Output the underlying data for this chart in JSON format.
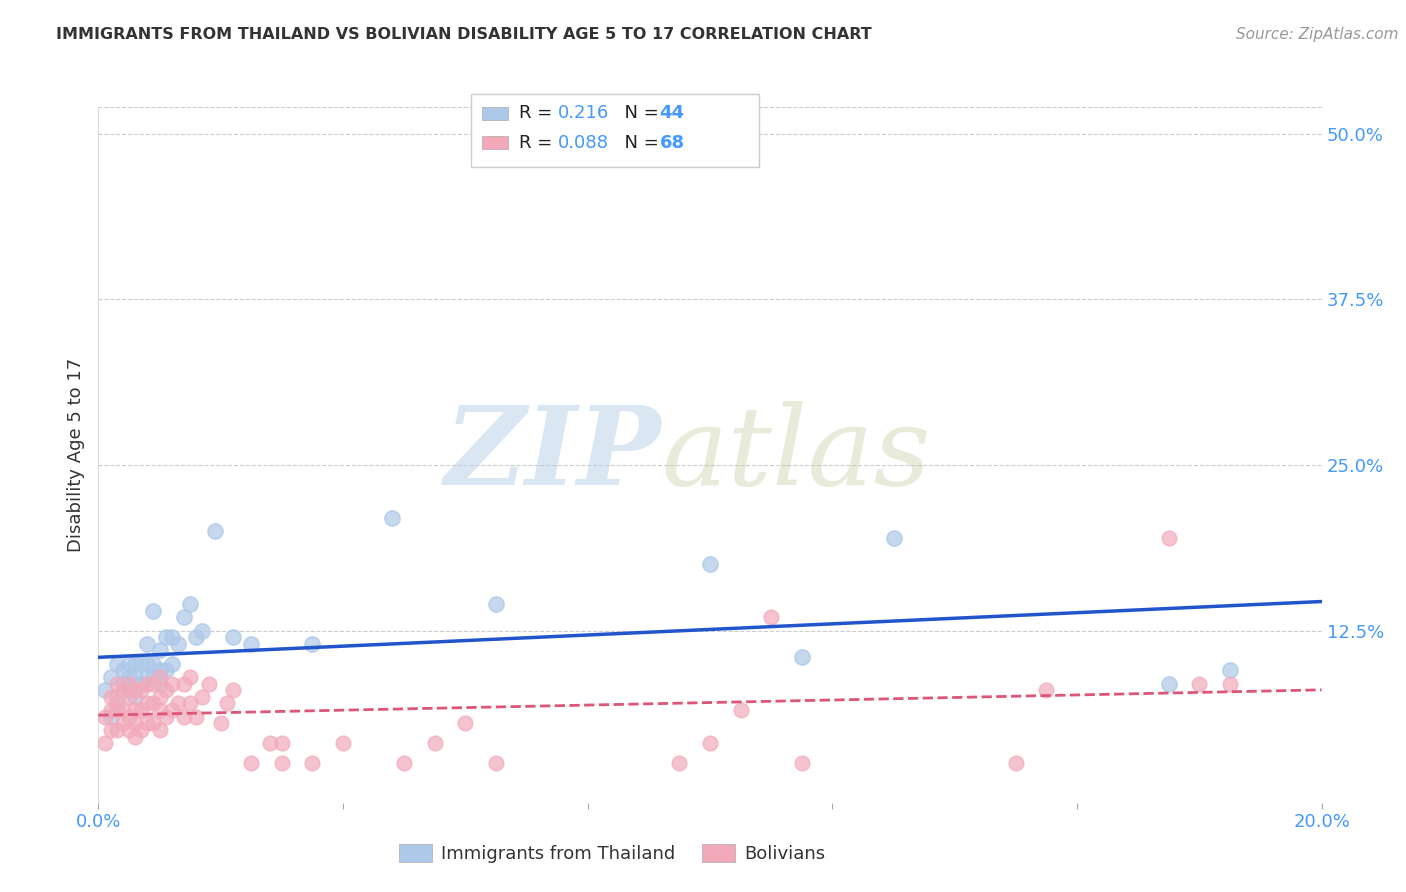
{
  "title": "IMMIGRANTS FROM THAILAND VS BOLIVIAN DISABILITY AGE 5 TO 17 CORRELATION CHART",
  "source": "Source: ZipAtlas.com",
  "ylabel": "Disability Age 5 to 17",
  "xlim": [
    0.0,
    0.2
  ],
  "ylim": [
    -0.005,
    0.52
  ],
  "xticks": [
    0.0,
    0.04,
    0.08,
    0.12,
    0.16,
    0.2
  ],
  "xticklabels": [
    "0.0%",
    "",
    "",
    "",
    "",
    "20.0%"
  ],
  "yticks_right": [
    0.0,
    0.125,
    0.25,
    0.375,
    0.5
  ],
  "yticklabels_right": [
    "",
    "12.5%",
    "25.0%",
    "37.5%",
    "50.0%"
  ],
  "thailand_color": "#adc8e8",
  "bolivian_color": "#f2aabb",
  "trend_blue": "#2255cc",
  "trend_pink": "#dd5577",
  "tick_color": "#4499ff",
  "label_color": "#333333",
  "source_color": "#999999",
  "grid_color": "#cccccc",
  "background_color": "#ffffff",
  "thailand_x": [
    0.001,
    0.002,
    0.002,
    0.003,
    0.003,
    0.004,
    0.004,
    0.005,
    0.005,
    0.005,
    0.006,
    0.006,
    0.006,
    0.007,
    0.007,
    0.008,
    0.008,
    0.008,
    0.009,
    0.009,
    0.009,
    0.01,
    0.01,
    0.01,
    0.011,
    0.011,
    0.012,
    0.012,
    0.013,
    0.014,
    0.015,
    0.016,
    0.017,
    0.019,
    0.022,
    0.025,
    0.035,
    0.048,
    0.065,
    0.1,
    0.115,
    0.13,
    0.175,
    0.185
  ],
  "thailand_y": [
    0.08,
    0.06,
    0.09,
    0.07,
    0.1,
    0.085,
    0.095,
    0.08,
    0.09,
    0.1,
    0.075,
    0.09,
    0.1,
    0.085,
    0.1,
    0.09,
    0.1,
    0.115,
    0.09,
    0.1,
    0.14,
    0.085,
    0.095,
    0.11,
    0.095,
    0.12,
    0.1,
    0.12,
    0.115,
    0.135,
    0.145,
    0.12,
    0.125,
    0.2,
    0.12,
    0.115,
    0.115,
    0.21,
    0.145,
    0.175,
    0.105,
    0.195,
    0.085,
    0.095
  ],
  "bolivian_x": [
    0.001,
    0.001,
    0.002,
    0.002,
    0.002,
    0.003,
    0.003,
    0.003,
    0.003,
    0.004,
    0.004,
    0.004,
    0.005,
    0.005,
    0.005,
    0.005,
    0.006,
    0.006,
    0.006,
    0.006,
    0.007,
    0.007,
    0.007,
    0.008,
    0.008,
    0.008,
    0.009,
    0.009,
    0.009,
    0.01,
    0.01,
    0.01,
    0.01,
    0.011,
    0.011,
    0.012,
    0.012,
    0.013,
    0.014,
    0.014,
    0.015,
    0.015,
    0.016,
    0.017,
    0.018,
    0.02,
    0.021,
    0.022,
    0.025,
    0.028,
    0.03,
    0.03,
    0.035,
    0.04,
    0.05,
    0.055,
    0.06,
    0.065,
    0.095,
    0.1,
    0.105,
    0.11,
    0.115,
    0.15,
    0.155,
    0.175,
    0.18,
    0.185
  ],
  "bolivian_y": [
    0.06,
    0.04,
    0.05,
    0.065,
    0.075,
    0.05,
    0.065,
    0.075,
    0.085,
    0.055,
    0.065,
    0.08,
    0.05,
    0.06,
    0.075,
    0.085,
    0.045,
    0.055,
    0.065,
    0.08,
    0.05,
    0.065,
    0.08,
    0.055,
    0.07,
    0.085,
    0.055,
    0.07,
    0.085,
    0.05,
    0.065,
    0.075,
    0.09,
    0.06,
    0.08,
    0.065,
    0.085,
    0.07,
    0.06,
    0.085,
    0.07,
    0.09,
    0.06,
    0.075,
    0.085,
    0.055,
    0.07,
    0.08,
    0.025,
    0.04,
    0.025,
    0.04,
    0.025,
    0.04,
    0.025,
    0.04,
    0.055,
    0.025,
    0.025,
    0.04,
    0.065,
    0.135,
    0.025,
    0.025,
    0.08,
    0.195,
    0.085,
    0.085
  ]
}
